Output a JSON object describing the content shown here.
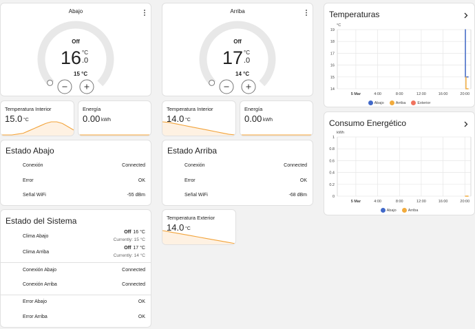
{
  "thermostats": [
    {
      "name": "Abajo",
      "state": "Off",
      "target": "16",
      "target_decimal": ".0",
      "unit": "°C",
      "current": "15 °C"
    },
    {
      "name": "Arriba",
      "state": "Off",
      "target": "17",
      "target_decimal": ".0",
      "unit": "°C",
      "current": "14 °C"
    }
  ],
  "sensors": [
    {
      "title": "Temperatura Interior",
      "value": "15.0",
      "unit": "°C",
      "icon": "therm",
      "trend": [
        14.6,
        14.6,
        14.6,
        14.65,
        14.7,
        14.85,
        15.0,
        15.15,
        15.3,
        15.4,
        15.4,
        15.3,
        15.1,
        14.9
      ]
    },
    {
      "title": "Energía",
      "value": "0.00",
      "unit": "kWh",
      "icon": "bolt",
      "trend": [
        0,
        0
      ]
    },
    {
      "title": "Temperatura Interior",
      "value": "14.0",
      "unit": "°C",
      "icon": "therm",
      "trend": [
        15.0,
        14.95,
        14.85,
        14.75,
        14.65,
        14.55,
        14.45,
        14.35,
        14.25,
        14.15,
        14.05,
        14.0
      ]
    },
    {
      "title": "Energía",
      "value": "0.00",
      "unit": "kWh",
      "icon": "bolt",
      "trend": [
        0,
        0
      ]
    },
    {
      "title": "Temperatura Exterior",
      "value": "14.0",
      "unit": "°C",
      "icon": "therm",
      "trend": [
        15.0,
        14.9,
        14.8,
        14.7,
        14.6,
        14.5,
        14.4,
        14.3,
        14.2,
        14.1,
        14.0
      ]
    }
  ],
  "entity_cards": [
    {
      "title": "Estado Abajo",
      "rows": [
        {
          "label": "Conexión",
          "value": "Connected",
          "icon": "wifi"
        },
        {
          "label": "Error",
          "value": "OK",
          "icon": "info"
        },
        {
          "label": "Señal WiFi",
          "value": "-55 dBm",
          "icon": "wifi"
        }
      ]
    },
    {
      "title": "Estado Arriba",
      "rows": [
        {
          "label": "Conexión",
          "value": "Connected",
          "icon": "wifi"
        },
        {
          "label": "Error",
          "value": "OK",
          "icon": "info"
        },
        {
          "label": "Señal WiFi",
          "value": "-68 dBm",
          "icon": "wifi"
        }
      ]
    }
  ],
  "system": {
    "title": "Estado del Sistema",
    "climate": [
      {
        "label": "Clima Abajo",
        "state": "Off",
        "setpoint": "16 °C",
        "current": "Currently: 15 °C"
      },
      {
        "label": "Clima Arriba",
        "state": "Off",
        "setpoint": "17 °C",
        "current": "Currently: 14 °C"
      }
    ],
    "rows": [
      {
        "label": "Conexión Abajo",
        "value": "Connected",
        "icon": "monitor"
      },
      {
        "label": "Conexión Arriba",
        "value": "Connected",
        "icon": "monitor"
      },
      {
        "label": "Error Abajo",
        "value": "OK",
        "icon": "check"
      },
      {
        "label": "Error Arriba",
        "value": "OK",
        "icon": "check"
      }
    ]
  },
  "charts": [
    {
      "type": "line",
      "title": "Temperaturas",
      "unit": "°C",
      "xlim": [
        -3.4,
        21.1
      ],
      "xticks": [
        {
          "value": 0,
          "label": "5 Mar"
        },
        {
          "value": 4,
          "label": "4:00"
        },
        {
          "value": 8,
          "label": "8:00"
        },
        {
          "value": 12,
          "label": "12:00"
        },
        {
          "value": 16,
          "label": "16:00"
        },
        {
          "value": 20,
          "label": "20:00"
        }
      ],
      "ylim": [
        14,
        19
      ],
      "yticks": [
        19,
        18,
        17,
        16,
        15,
        14
      ],
      "series": [
        {
          "name": "Abajo",
          "color": "#4169c9",
          "x": [
            20.1,
            20.1,
            20.6
          ],
          "values": [
            19,
            15,
            15
          ]
        },
        {
          "name": "Arriba",
          "color": "#f2ab3c",
          "x": [
            20.2,
            20.2,
            20.6
          ],
          "values": [
            15,
            14,
            14
          ]
        },
        {
          "name": "Exterior",
          "color": "#f0735e",
          "x": [],
          "values": []
        }
      ]
    },
    {
      "type": "line",
      "title": "Consumo Energético",
      "unit": "kWh",
      "xlim": [
        -3.4,
        21.1
      ],
      "xticks": [
        {
          "value": 0,
          "label": "5 Mar"
        },
        {
          "value": 4,
          "label": "4:00"
        },
        {
          "value": 8,
          "label": "8:00"
        },
        {
          "value": 12,
          "label": "12:00"
        },
        {
          "value": 16,
          "label": "16:00"
        },
        {
          "value": 20,
          "label": "20:00"
        }
      ],
      "ylim": [
        0,
        1
      ],
      "yticks": [
        1,
        0.8,
        0.6,
        0.4,
        0.2,
        0
      ],
      "series": [
        {
          "name": "Abajo",
          "color": "#4169c9",
          "x": [],
          "values": []
        },
        {
          "name": "Arriba",
          "color": "#f2ab3c",
          "x": [
            20.1,
            20.6
          ],
          "values": [
            0,
            0
          ]
        }
      ]
    }
  ]
}
